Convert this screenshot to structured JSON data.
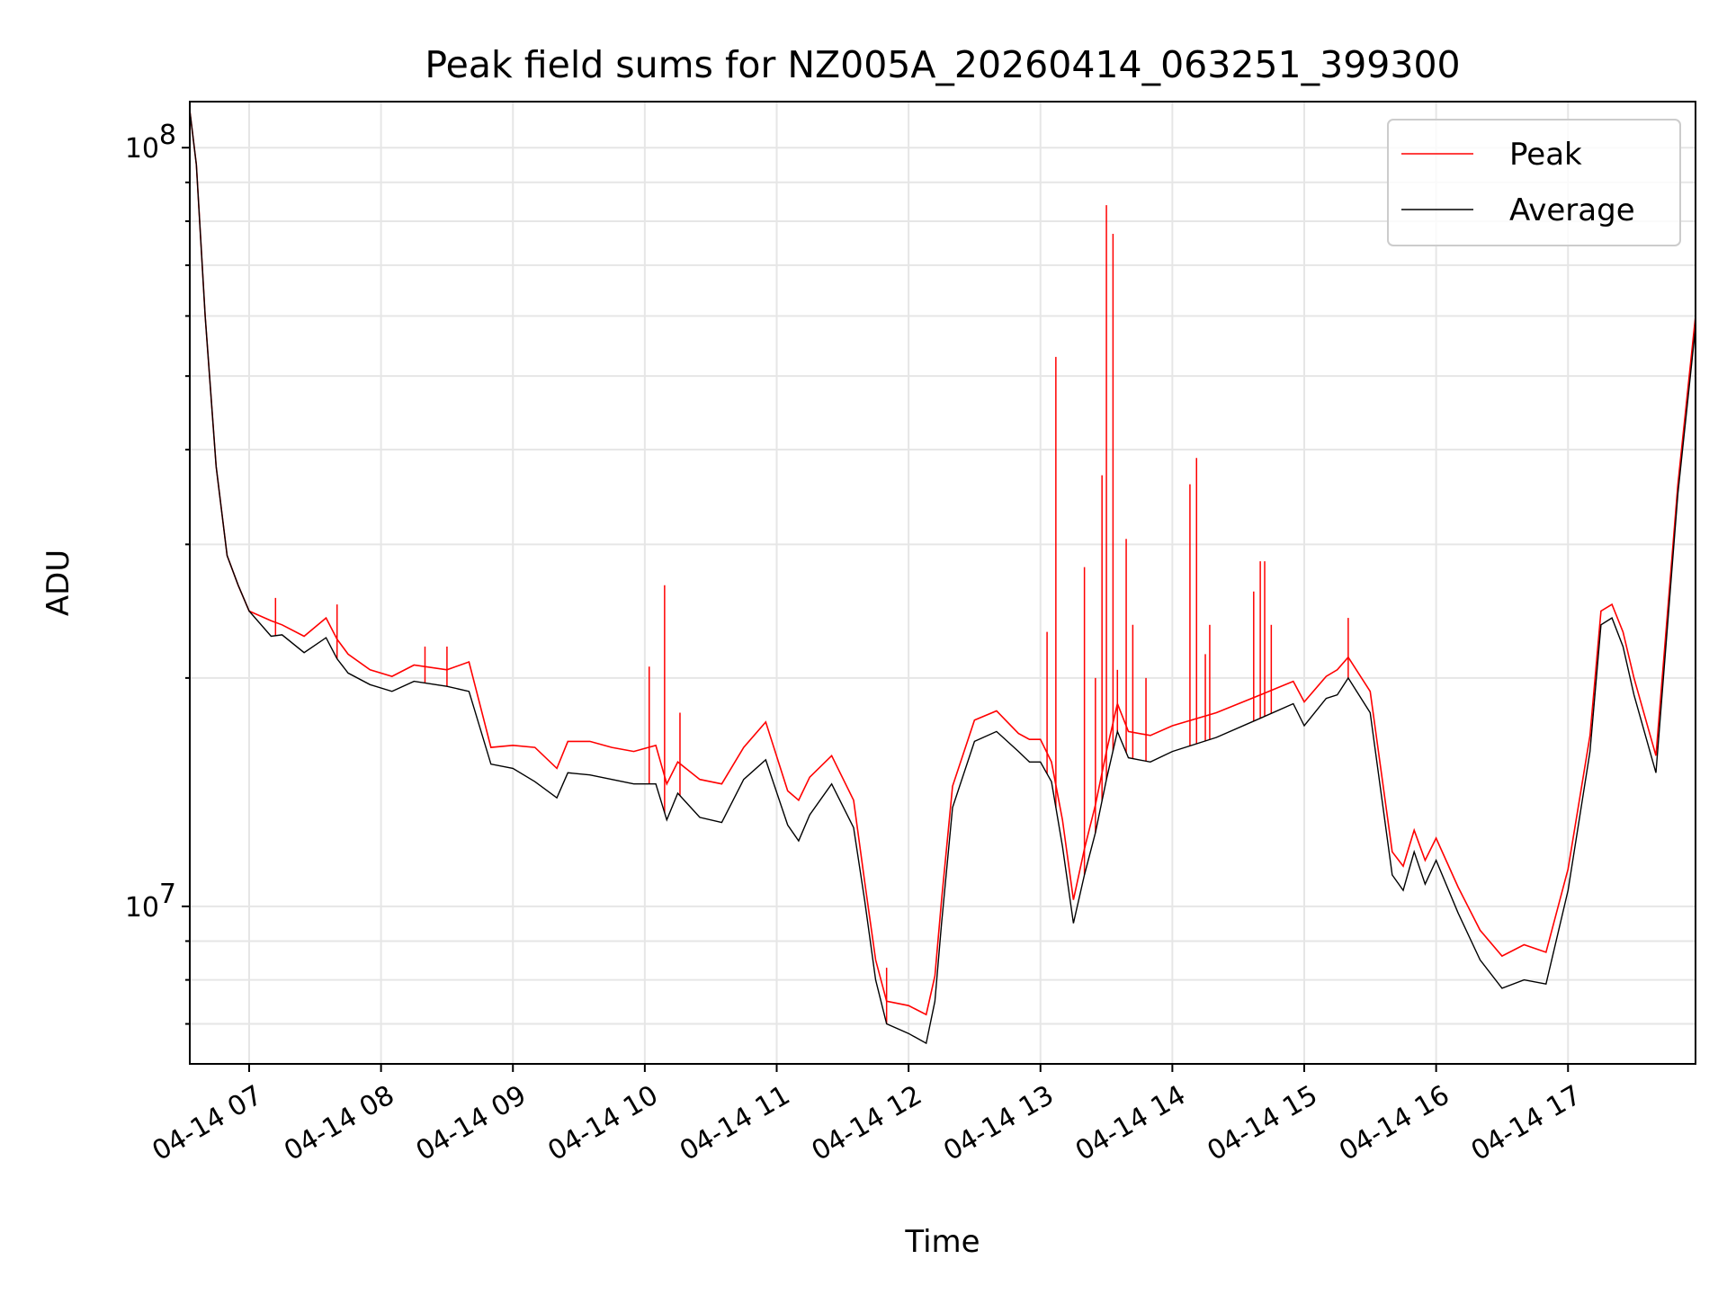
{
  "chart_data": {
    "type": "line",
    "title": "Peak field sums for NZ005A_20260414_063251_399300",
    "xlabel": "Time",
    "ylabel": "ADU",
    "yscale": "log",
    "ylim": [
      6200000,
      115000000
    ],
    "xlim": [
      "2026-04-14 06:33",
      "2026-04-14 17:58"
    ],
    "x_ticks": [
      "04-14 07",
      "04-14 08",
      "04-14 09",
      "04-14 10",
      "04-14 11",
      "04-14 12",
      "04-14 13",
      "04-14 14",
      "04-14 15",
      "04-14 16",
      "04-14 17"
    ],
    "y_ticks": [
      {
        "base": "10",
        "exp": "7",
        "value": 10000000
      },
      {
        "base": "10",
        "exp": "8",
        "value": 100000000
      }
    ],
    "grid": true,
    "legend_position": "upper right",
    "colors": {
      "peak": "#ff0000",
      "average": "#000000"
    },
    "series": [
      {
        "name": "Average",
        "key": "average"
      },
      {
        "name": "Peak",
        "key": "peak"
      }
    ],
    "x": [
      "06:33",
      "06:36",
      "06:40",
      "06:45",
      "06:50",
      "06:55",
      "07:00",
      "07:10",
      "07:15",
      "07:25",
      "07:35",
      "07:40",
      "07:45",
      "07:55",
      "08:05",
      "08:15",
      "08:30",
      "08:40",
      "08:50",
      "09:00",
      "09:10",
      "09:20",
      "09:25",
      "09:35",
      "09:45",
      "09:55",
      "10:05",
      "10:10",
      "10:15",
      "10:25",
      "10:35",
      "10:45",
      "10:55",
      "11:05",
      "11:10",
      "11:15",
      "11:25",
      "11:35",
      "11:40",
      "11:45",
      "11:50",
      "12:00",
      "12:08",
      "12:12",
      "12:15",
      "12:20",
      "12:30",
      "12:40",
      "12:50",
      "12:55",
      "13:00",
      "13:05",
      "13:10",
      "13:15",
      "13:20",
      "13:25",
      "13:30",
      "13:35",
      "13:40",
      "13:50",
      "14:00",
      "14:20",
      "14:40",
      "14:55",
      "15:00",
      "15:10",
      "15:15",
      "15:20",
      "15:30",
      "15:40",
      "15:45",
      "15:50",
      "15:55",
      "16:00",
      "16:10",
      "16:20",
      "16:30",
      "16:40",
      "16:50",
      "17:00",
      "17:10",
      "17:15",
      "17:20",
      "17:25",
      "17:30",
      "17:40",
      "17:50",
      "17:58"
    ],
    "average": [
      112000000,
      95000000,
      60000000,
      38000000,
      29000000,
      26500000,
      24500000,
      22700000,
      22800000,
      21600000,
      22600000,
      21200000,
      20300000,
      19600000,
      19200000,
      19800000,
      19500000,
      19200000,
      15400000,
      15200000,
      14600000,
      13900000,
      15000000,
      14900000,
      14700000,
      14500000,
      14500000,
      13000000,
      14100000,
      13100000,
      12900000,
      14700000,
      15600000,
      12800000,
      12200000,
      13200000,
      14500000,
      12700000,
      10200000,
      8000000,
      7000000,
      6800000,
      6600000,
      7500000,
      9500000,
      13500000,
      16500000,
      17000000,
      16000000,
      15500000,
      15500000,
      14600000,
      12000000,
      9500000,
      11000000,
      12500000,
      14700000,
      17000000,
      15700000,
      15500000,
      16000000,
      16700000,
      17700000,
      18500000,
      17300000,
      18800000,
      19000000,
      20000000,
      18000000,
      11000000,
      10500000,
      11800000,
      10700000,
      11500000,
      9800000,
      8500000,
      7800000,
      8000000,
      7900000,
      10500000,
      16000000,
      23500000,
      24000000,
      22000000,
      19000000,
      15000000,
      35000000,
      58000000
    ],
    "peak": [
      112000000,
      95000000,
      60000000,
      38000000,
      29000000,
      26500000,
      24500000,
      23800000,
      23500000,
      22700000,
      24000000,
      22500000,
      21500000,
      20500000,
      20100000,
      20800000,
      20500000,
      21000000,
      16200000,
      16300000,
      16200000,
      15200000,
      16500000,
      16500000,
      16200000,
      16000000,
      16300000,
      14500000,
      15500000,
      14700000,
      14500000,
      16200000,
      17500000,
      14200000,
      13800000,
      14800000,
      15800000,
      13800000,
      10800000,
      8500000,
      7500000,
      7400000,
      7200000,
      8100000,
      10200000,
      14400000,
      17600000,
      18100000,
      16900000,
      16600000,
      16600000,
      15500000,
      13000000,
      10200000,
      11900000,
      13600000,
      16000000,
      18500000,
      17000000,
      16800000,
      17300000,
      18000000,
      19000000,
      19800000,
      18600000,
      20100000,
      20500000,
      21300000,
      19200000,
      11800000,
      11300000,
      12600000,
      11500000,
      12300000,
      10600000,
      9300000,
      8600000,
      8900000,
      8700000,
      11200000,
      16800000,
      24500000,
      25000000,
      23000000,
      20000000,
      15800000,
      36000000,
      60000000
    ],
    "peak_spikes": [
      {
        "x": "07:12",
        "value": 25500000
      },
      {
        "x": "07:40",
        "value": 25000000
      },
      {
        "x": "08:20",
        "value": 22000000
      },
      {
        "x": "08:30",
        "value": 22000000
      },
      {
        "x": "10:02",
        "value": 20700000
      },
      {
        "x": "10:09",
        "value": 26500000
      },
      {
        "x": "10:16",
        "value": 18000000
      },
      {
        "x": "11:50",
        "value": 8300000
      },
      {
        "x": "13:03",
        "value": 23000000
      },
      {
        "x": "13:07",
        "value": 53000000
      },
      {
        "x": "13:20",
        "value": 28000000
      },
      {
        "x": "13:25",
        "value": 20000000
      },
      {
        "x": "13:28",
        "value": 37000000
      },
      {
        "x": "13:30",
        "value": 84000000
      },
      {
        "x": "13:33",
        "value": 77000000
      },
      {
        "x": "13:35",
        "value": 20500000
      },
      {
        "x": "13:39",
        "value": 30500000
      },
      {
        "x": "13:42",
        "value": 23500000
      },
      {
        "x": "13:48",
        "value": 20000000
      },
      {
        "x": "14:08",
        "value": 36000000
      },
      {
        "x": "14:11",
        "value": 39000000
      },
      {
        "x": "14:15",
        "value": 21500000
      },
      {
        "x": "14:17",
        "value": 23500000
      },
      {
        "x": "14:37",
        "value": 26000000
      },
      {
        "x": "14:40",
        "value": 28500000
      },
      {
        "x": "14:42",
        "value": 28500000
      },
      {
        "x": "14:45",
        "value": 23500000
      },
      {
        "x": "15:20",
        "value": 24000000
      }
    ]
  }
}
